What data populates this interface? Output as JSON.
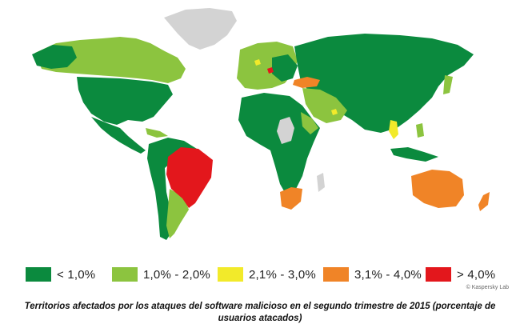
{
  "map": {
    "colors": {
      "lt1": "#0b8a3e",
      "1to2": "#8cc43f",
      "2to3": "#f2ea2a",
      "3to4": "#f08427",
      "gt4": "#e3171c",
      "nodata": "#d3d3d3"
    },
    "regions": [
      {
        "name": "north-america",
        "cls": "lt1"
      },
      {
        "name": "greenland",
        "cls": "nodata"
      },
      {
        "name": "canada-north",
        "cls": "1to2"
      },
      {
        "name": "mexico-central-america",
        "cls": "lt1"
      },
      {
        "name": "south-america-west",
        "cls": "lt1"
      },
      {
        "name": "brazil",
        "cls": "gt4"
      },
      {
        "name": "europe",
        "cls": "1to2"
      },
      {
        "name": "russia-asia",
        "cls": "lt1"
      },
      {
        "name": "turkey",
        "cls": "3to4"
      },
      {
        "name": "africa",
        "cls": "lt1"
      },
      {
        "name": "south-africa",
        "cls": "3to4"
      },
      {
        "name": "australia",
        "cls": "3to4"
      },
      {
        "name": "new-zealand",
        "cls": "3to4"
      },
      {
        "name": "southeast-asia",
        "cls": "2to3"
      }
    ]
  },
  "legend": [
    {
      "label": "< 1,0%",
      "color": "#0b8a3e"
    },
    {
      "label": "1,0% - 2,0%",
      "color": "#8cc43f"
    },
    {
      "label": "2,1% - 3,0%",
      "color": "#f2ea2a"
    },
    {
      "label": "3,1% - 4,0%",
      "color": "#f08427"
    },
    {
      "label": "> 4,0%",
      "color": "#e3171c"
    }
  ],
  "credit": "© Kaspersky Lab",
  "caption": "Territorios afectados por los ataques del software malicioso en el segundo trimestre de 2015 (porcentaje de usuarios atacados)"
}
